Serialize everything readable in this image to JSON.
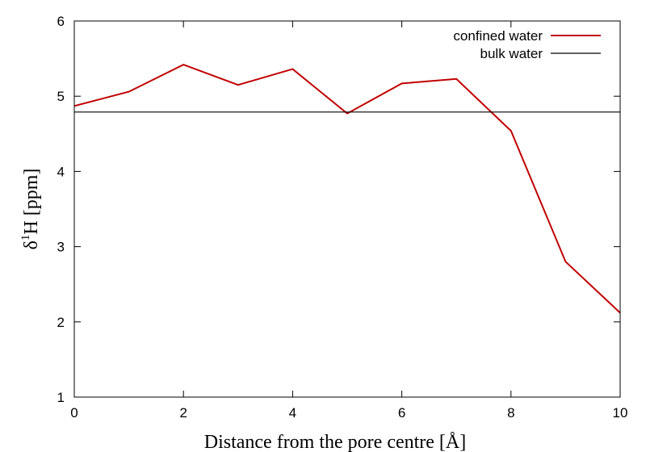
{
  "chart_data": {
    "type": "line",
    "xlabel": "Distance from the pore centre [Å]",
    "ylabel_main": "δ",
    "ylabel_sup": "1",
    "ylabel_rest": "H [ppm]",
    "xlim": [
      0,
      10
    ],
    "ylim": [
      1,
      6
    ],
    "xticks": [
      0,
      2,
      4,
      6,
      8,
      10
    ],
    "yticks": [
      1,
      2,
      3,
      4,
      5,
      6
    ],
    "grid": false,
    "legend_position": "top-right",
    "series": [
      {
        "name": "confined water",
        "color": "#c00000",
        "x": [
          0,
          1,
          2,
          3,
          4,
          5,
          6,
          7,
          8,
          9,
          10
        ],
        "y": [
          4.87,
          5.06,
          5.42,
          5.15,
          5.36,
          4.77,
          5.17,
          5.23,
          4.54,
          2.8,
          2.12
        ]
      },
      {
        "name": "bulk water",
        "color": "#000000",
        "x": [
          0,
          10
        ],
        "y": [
          4.79,
          4.79
        ]
      }
    ]
  }
}
